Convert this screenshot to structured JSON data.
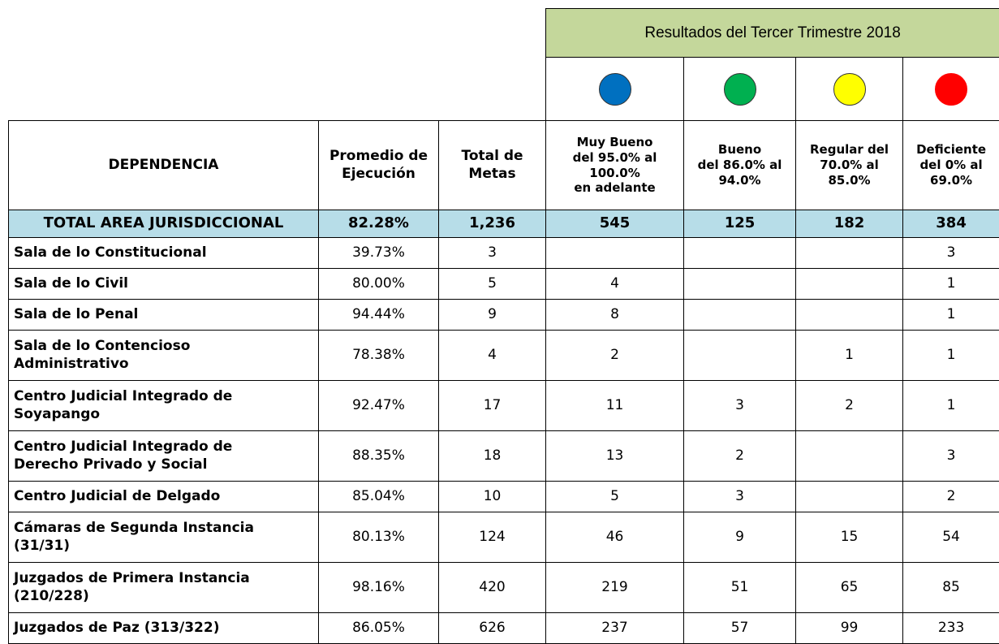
{
  "header": {
    "title": "Resultados del Tercer Trimestre 2018"
  },
  "table": {
    "columns": [
      "DEPENDENCIA",
      "Promedio de\nEjecución",
      "Total de\nMetas",
      "Muy Bueno\ndel 95.0% al\n100.0%\nen adelante",
      "Bueno\ndel 86.0% al\n94.0%",
      "Regular  del\n70.0% al\n85.0%",
      "Deficiente\ndel 0% al\n69.0%"
    ],
    "total": [
      "TOTAL AREA JURISDICCIONAL",
      "82.28%",
      "1,236",
      "545",
      "125",
      "182",
      "384"
    ],
    "rows": [
      [
        "Sala de lo Constitucional",
        "39.73%",
        "3",
        null,
        null,
        null,
        "3"
      ],
      [
        "Sala de lo Civil",
        "80.00%",
        "5",
        "4",
        null,
        null,
        "1"
      ],
      [
        "Sala de lo Penal",
        "94.44%",
        "9",
        "8",
        null,
        null,
        "1"
      ],
      [
        "Sala de lo Contencioso\nAdministrativo",
        "78.38%",
        "4",
        "2",
        null,
        "1",
        "1"
      ],
      [
        "Centro Judicial Integrado de\nSoyapango",
        "92.47%",
        "17",
        "11",
        "3",
        "2",
        "1"
      ],
      [
        "Centro Judicial Integrado de\nDerecho Privado y Social",
        "88.35%",
        "18",
        "13",
        "2",
        null,
        "3"
      ],
      [
        "Centro Judicial de Delgado",
        "85.04%",
        "10",
        "5",
        "3",
        null,
        "2"
      ],
      [
        "Cámaras de Segunda Instancia\n(31/31)",
        "80.13%",
        "124",
        "46",
        "9",
        "15",
        "54"
      ],
      [
        "Juzgados de Primera Instancia\n(210/228)",
        "98.16%",
        "420",
        "219",
        "51",
        "65",
        "85"
      ],
      [
        "Juzgados de Paz  (313/322)",
        "86.05%",
        "626",
        "237",
        "57",
        "99",
        "233"
      ]
    ]
  }
}
